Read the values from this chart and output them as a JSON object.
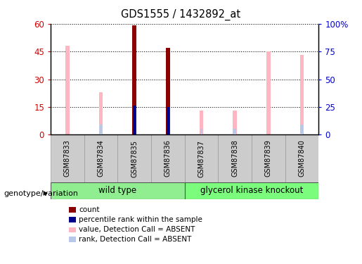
{
  "title": "GDS1555 / 1432892_at",
  "samples": [
    "GSM87833",
    "GSM87834",
    "GSM87835",
    "GSM87836",
    "GSM87837",
    "GSM87838",
    "GSM87839",
    "GSM87840"
  ],
  "value_absent": [
    48,
    23,
    null,
    null,
    13,
    13,
    45,
    43
  ],
  "rank_absent_right": [
    null,
    9,
    null,
    null,
    5,
    5,
    null,
    9
  ],
  "count": [
    null,
    null,
    59,
    47,
    null,
    null,
    null,
    null
  ],
  "percentile_rank_right": [
    null,
    null,
    26,
    25,
    null,
    null,
    null,
    null
  ],
  "ylim_left": [
    0,
    60
  ],
  "ylim_right": [
    0,
    100
  ],
  "yticks_left": [
    0,
    15,
    30,
    45,
    60
  ],
  "yticks_right": [
    0,
    25,
    50,
    75,
    100
  ],
  "ytick_labels_right": [
    "0",
    "25",
    "50",
    "75",
    "100%"
  ],
  "group_wt_color": "#90EE90",
  "group_gk_color": "#7CFC7C",
  "group_label": "genotype/variation",
  "color_count": "#8B0000",
  "color_percentile": "#00008B",
  "color_value_absent": "#FFB6C1",
  "color_rank_absent": "#B8C8E8",
  "legend_items": [
    {
      "label": "count",
      "color": "#8B0000"
    },
    {
      "label": "percentile rank within the sample",
      "color": "#00008B"
    },
    {
      "label": "value, Detection Call = ABSENT",
      "color": "#FFB6C1"
    },
    {
      "label": "rank, Detection Call = ABSENT",
      "color": "#B8C8E8"
    }
  ],
  "tick_color_left": "#CC0000",
  "tick_color_right": "#0000CC",
  "thin_bar_width": 0.12,
  "wide_bar_width": 0.25
}
